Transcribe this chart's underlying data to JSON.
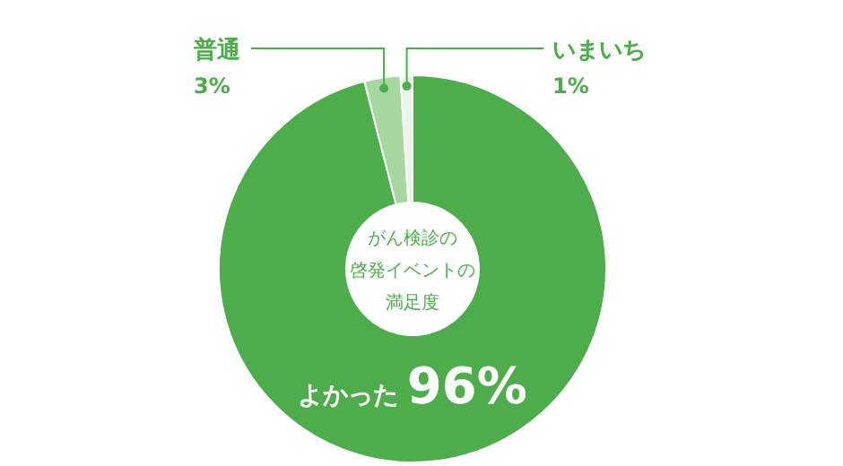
{
  "chart_data": {
    "type": "donut",
    "title": "がん検診の啓発イベントの満足度",
    "categories": [
      "よかった",
      "普通",
      "いまいち"
    ],
    "values": [
      96,
      3,
      1
    ],
    "value_labels": [
      "96%",
      "3%",
      "1%"
    ],
    "colors": [
      "#4cad4a",
      "#a6d79e",
      "#eaf5e7"
    ]
  }
}
